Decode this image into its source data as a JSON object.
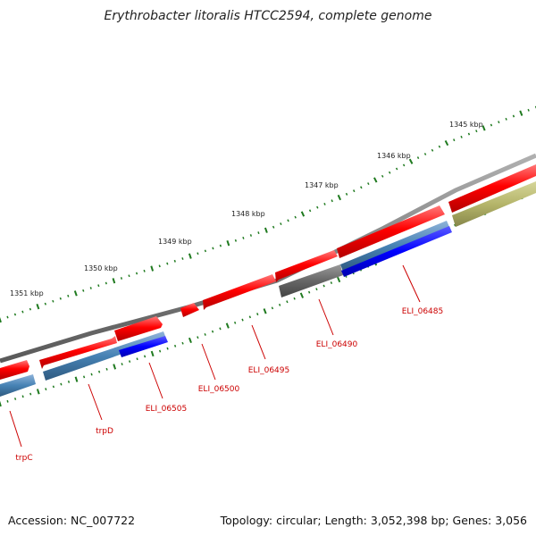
{
  "title": "Erythrobacter litoralis HTCC2594, complete genome",
  "footer": {
    "accession": "Accession: NC_007722",
    "summary": "Topology: circular; Length: 3,052,398 bp; Genes: 3,056"
  },
  "scale": {
    "ticks": [
      {
        "label": "1345 kbp",
        "kbp": 1345
      },
      {
        "label": "1346 kbp",
        "kbp": 1346
      },
      {
        "label": "1347 kbp",
        "kbp": 1347
      },
      {
        "label": "1348 kbp",
        "kbp": 1348
      },
      {
        "label": "1349 kbp",
        "kbp": 1349
      },
      {
        "label": "1350 kbp",
        "kbp": 1350
      },
      {
        "label": "1351 kbp",
        "kbp": 1351
      }
    ]
  },
  "genes": [
    {
      "label": "trpC"
    },
    {
      "label": "trpD"
    },
    {
      "label": "ELI_06505"
    },
    {
      "label": "ELI_06500"
    },
    {
      "label": "ELI_06495"
    },
    {
      "label": "ELI_06490"
    },
    {
      "label": "ELI_06485"
    }
  ],
  "colors": {
    "backbone": "#7f7f7f",
    "cds": "#ff0000",
    "feature_blue": "#4682b4",
    "feature_darkblue": "#0000ff",
    "feature_gray": "#666666",
    "feature_olive": "#b5b56a",
    "tick": "#1f7a1f",
    "gene_label": "#cc0000"
  }
}
